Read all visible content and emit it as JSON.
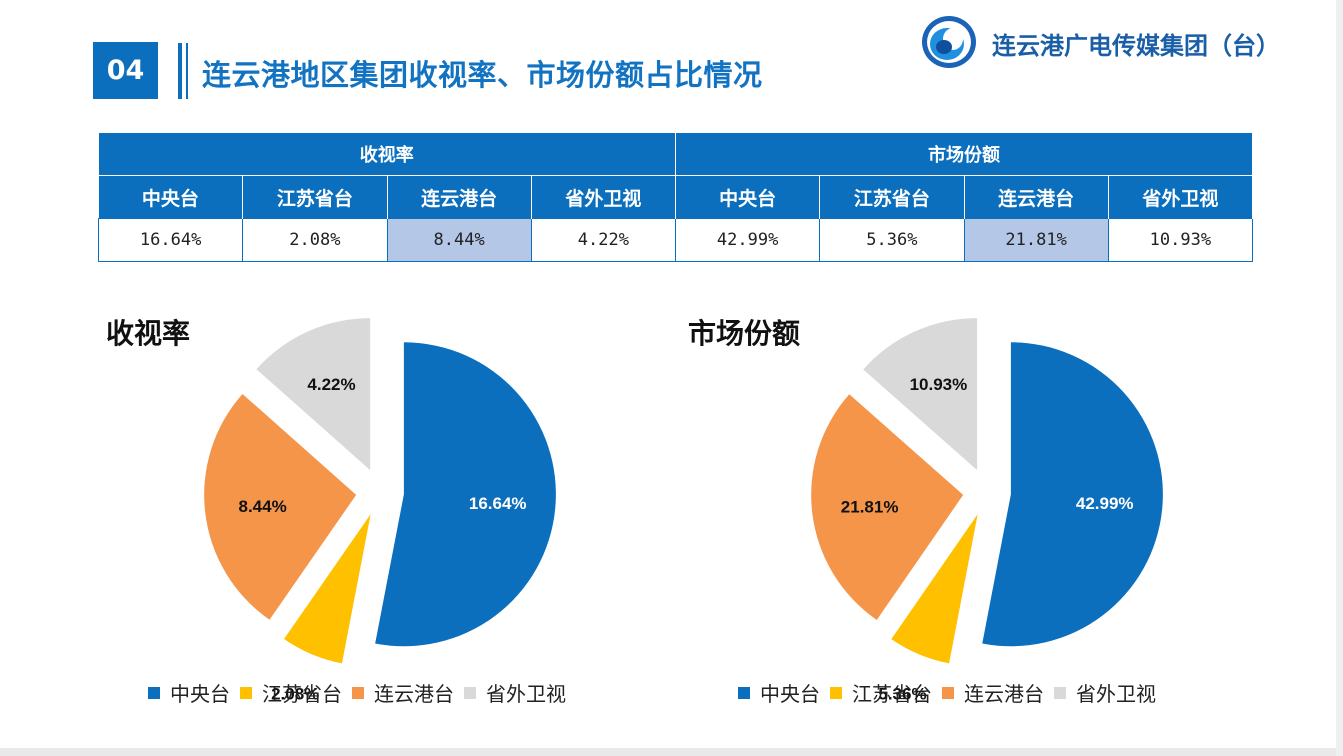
{
  "header": {
    "section_number": "04",
    "title": "连云港地区集团收视率、市场份额占比情况",
    "org_name": "连云港广电传媒集团（台）"
  },
  "table": {
    "groups": [
      "收视率",
      "市场份额"
    ],
    "columns": [
      "中央台",
      "江苏省台",
      "连云港台",
      "省外卫视",
      "中央台",
      "江苏省台",
      "连云港台",
      "省外卫视"
    ],
    "values": [
      "16.64%",
      "2.08%",
      "8.44%",
      "4.22%",
      "42.99%",
      "5.36%",
      "21.81%",
      "10.93%"
    ]
  },
  "chart_data": [
    {
      "type": "pie",
      "title": "收视率",
      "categories": [
        "中央台",
        "江苏省台",
        "连云港台",
        "省外卫视"
      ],
      "values": [
        16.64,
        2.08,
        8.44,
        4.22
      ],
      "labels": [
        "16.64%",
        "2.08%",
        "8.44%",
        "4.22%"
      ],
      "colors": [
        "#0b6fbe",
        "#ffc000",
        "#f4954a",
        "#d9d9d9"
      ],
      "exploded": true,
      "legend_position": "bottom"
    },
    {
      "type": "pie",
      "title": "市场份额",
      "categories": [
        "中央台",
        "江苏省台",
        "连云港台",
        "省外卫视"
      ],
      "values": [
        42.99,
        5.36,
        21.81,
        10.93
      ],
      "labels": [
        "42.99%",
        "5.36%",
        "21.81%",
        "10.93%"
      ],
      "colors": [
        "#0b6fbe",
        "#ffc000",
        "#f4954a",
        "#d9d9d9"
      ],
      "exploded": true,
      "legend_position": "bottom"
    }
  ]
}
